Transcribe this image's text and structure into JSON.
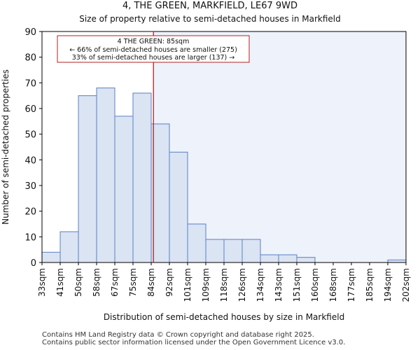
{
  "chart_data": {
    "type": "bar",
    "title": "4, THE GREEN, MARKFIELD, LE67 9WD",
    "subtitle": "Size of property relative to semi-detached houses in Markfield",
    "xlabel": "Distribution of semi-detached houses by size in Markfield",
    "ylabel": "Number of semi-detached properties",
    "ylim": [
      0,
      90
    ],
    "yticks": [
      0,
      10,
      20,
      30,
      40,
      50,
      60,
      70,
      80,
      90
    ],
    "x_tick_labels": [
      "33sqm",
      "41sqm",
      "50sqm",
      "58sqm",
      "67sqm",
      "75sqm",
      "84sqm",
      "92sqm",
      "101sqm",
      "109sqm",
      "118sqm",
      "126sqm",
      "134sqm",
      "143sqm",
      "151sqm",
      "160sqm",
      "168sqm",
      "177sqm",
      "185sqm",
      "194sqm",
      "202sqm"
    ],
    "values": [
      4,
      12,
      65,
      68,
      57,
      66,
      54,
      43,
      15,
      9,
      9,
      9,
      3,
      3,
      2,
      0,
      0,
      0,
      0,
      1
    ],
    "property_marker": {
      "size_sqm": 85
    },
    "annotation": {
      "line1": "4 THE GREEN: 85sqm",
      "line2": "← 66% of semi-detached houses are smaller (275)",
      "line3": "33% of semi-detached houses are larger (137) →"
    },
    "colors": {
      "bar_fill": "#dae4f3",
      "bar_edge": "#5b7fc4",
      "marker": "#b22222",
      "shade": "#eef2fb"
    }
  },
  "footer": {
    "line1": "Contains HM Land Registry data © Crown copyright and database right 2025.",
    "line2": "Contains public sector information licensed under the Open Government Licence v3.0."
  }
}
